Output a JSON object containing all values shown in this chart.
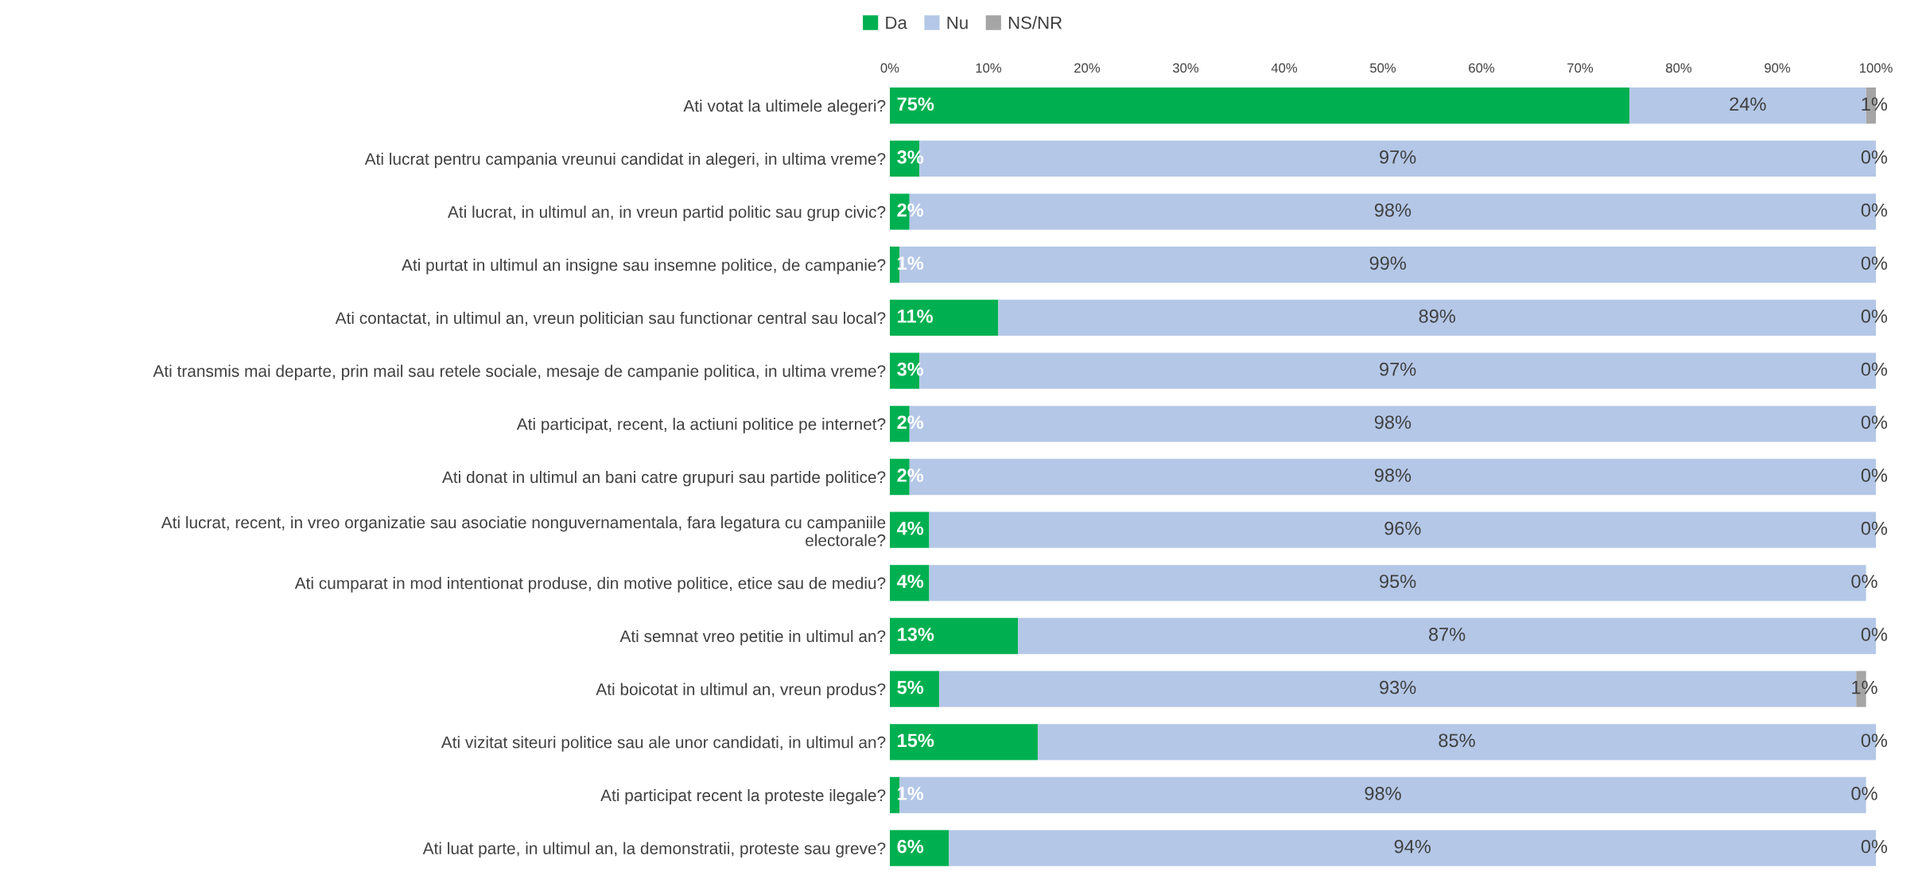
{
  "chart_data": {
    "type": "bar",
    "orientation": "horizontal",
    "stacked": true,
    "legend": "top",
    "grid": false,
    "categories": [
      "Ati votat la ultimele alegeri?",
      "Ati lucrat pentru campania vreunui candidat in alegeri, in ultima vreme?",
      "Ati lucrat, in ultimul an, in vreun partid politic sau grup civic?",
      "Ati purtat in ultimul an insigne sau insemne politice, de campanie?",
      "Ati contactat, in ultimul an, vreun politician sau functionar central sau local?",
      "Ati transmis mai departe, prin mail sau retele sociale, mesaje de campanie politica, in ultima vreme?",
      "Ati participat, recent, la actiuni politice pe internet?",
      "Ati donat in ultimul an bani catre grupuri sau partide politice?",
      "Ati lucrat, recent, in vreo organizatie sau asociatie nonguvernamentala, fara legatura cu campaniile\nelectorale?",
      "Ati cumparat in mod intentionat produse, din motive politice, etice sau de mediu?",
      "Ati semnat vreo petitie in ultimul an?",
      "Ati boicotat in ultimul an, vreun produs?",
      "Ati vizitat siteuri politice sau ale unor candidati, in ultimul an?",
      "Ati participat recent la proteste ilegale?",
      "Ati luat parte, in ultimul an, la demonstratii, proteste sau greve?"
    ],
    "series": [
      {
        "name": "Da",
        "color": "#00b050",
        "values": [
          75,
          3,
          2,
          1,
          11,
          3,
          2,
          2,
          4,
          4,
          13,
          5,
          15,
          1,
          6
        ],
        "value_labels": [
          "75%",
          "3%",
          "2%",
          "1%",
          "11%",
          "3%",
          "2%",
          "2%",
          "4%",
          "4%",
          "13%",
          "5%",
          "15%",
          "1%",
          "6%"
        ]
      },
      {
        "name": "Nu",
        "color": "#b4c7e7",
        "values": [
          24,
          97,
          98,
          99,
          89,
          97,
          98,
          98,
          96,
          95,
          87,
          93,
          85,
          98,
          94
        ],
        "value_labels": [
          "24%",
          "97%",
          "98%",
          "99%",
          "89%",
          "97%",
          "98%",
          "98%",
          "96%",
          "95%",
          "87%",
          "93%",
          "85%",
          "98%",
          "94%"
        ]
      },
      {
        "name": "NS/NR",
        "color": "#a5a5a5",
        "values": [
          1,
          0,
          0,
          0,
          0,
          0,
          0,
          0,
          0,
          0,
          0,
          1,
          0,
          0,
          0
        ],
        "value_labels": [
          "1%",
          "0%",
          "0%",
          "0%",
          "0%",
          "0%",
          "0%",
          "0%",
          "0%",
          "0%",
          "0%",
          "1%",
          "0%",
          "0%",
          "0%"
        ]
      }
    ],
    "xlim": [
      0,
      100
    ],
    "xticks": [
      {
        "value": 0,
        "label": "0%"
      },
      {
        "value": 10,
        "label": "10%"
      },
      {
        "value": 20,
        "label": "20%"
      },
      {
        "value": 30,
        "label": "30%"
      },
      {
        "value": 40,
        "label": "40%"
      },
      {
        "value": 50,
        "label": "50%"
      },
      {
        "value": 60,
        "label": "60%"
      },
      {
        "value": 70,
        "label": "70%"
      },
      {
        "value": 80,
        "label": "80%"
      },
      {
        "value": 90,
        "label": "90%"
      },
      {
        "value": 100,
        "label": "100%"
      }
    ]
  }
}
